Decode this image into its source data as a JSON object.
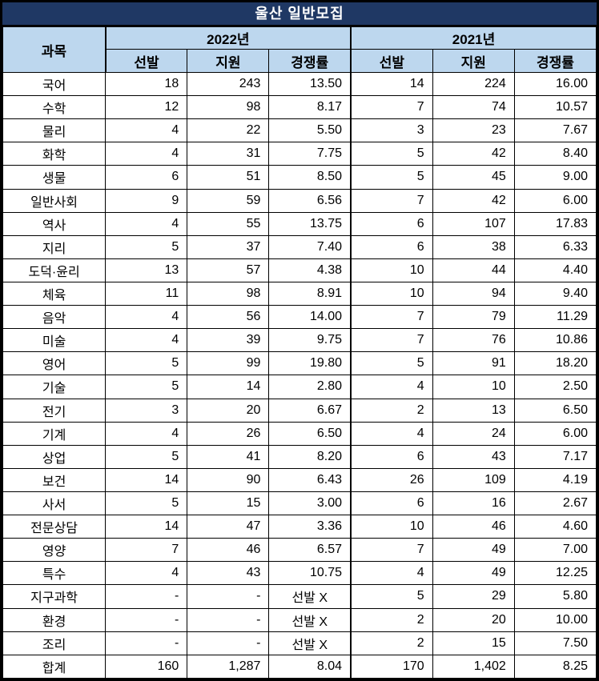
{
  "title": "울산 일반모집",
  "colors": {
    "title_bg": "#1F3864",
    "title_text": "#FFFFFF",
    "header_bg": "#BDD7EE",
    "border": "#000000",
    "cell_bg": "#FFFFFF",
    "cell_text": "#000000"
  },
  "chart_data": {
    "type": "table",
    "title": "울산 일반모집",
    "column_groups": [
      {
        "label": "과목",
        "span": 1
      },
      {
        "label": "2022년",
        "span": 3
      },
      {
        "label": "2021년",
        "span": 3
      }
    ],
    "sub_columns": [
      "선발",
      "지원",
      "경쟁률",
      "선발",
      "지원",
      "경쟁률"
    ],
    "no_selection_label": "선발 X",
    "total_label": "합계",
    "rows": [
      [
        "국어",
        "18",
        "243",
        "13.50",
        "14",
        "224",
        "16.00"
      ],
      [
        "수학",
        "12",
        "98",
        "8.17",
        "7",
        "74",
        "10.57"
      ],
      [
        "물리",
        "4",
        "22",
        "5.50",
        "3",
        "23",
        "7.67"
      ],
      [
        "화학",
        "4",
        "31",
        "7.75",
        "5",
        "42",
        "8.40"
      ],
      [
        "생물",
        "6",
        "51",
        "8.50",
        "5",
        "45",
        "9.00"
      ],
      [
        "일반사회",
        "9",
        "59",
        "6.56",
        "7",
        "42",
        "6.00"
      ],
      [
        "역사",
        "4",
        "55",
        "13.75",
        "6",
        "107",
        "17.83"
      ],
      [
        "지리",
        "5",
        "37",
        "7.40",
        "6",
        "38",
        "6.33"
      ],
      [
        "도덕·윤리",
        "13",
        "57",
        "4.38",
        "10",
        "44",
        "4.40"
      ],
      [
        "체육",
        "11",
        "98",
        "8.91",
        "10",
        "94",
        "9.40"
      ],
      [
        "음악",
        "4",
        "56",
        "14.00",
        "7",
        "79",
        "11.29"
      ],
      [
        "미술",
        "4",
        "39",
        "9.75",
        "7",
        "76",
        "10.86"
      ],
      [
        "영어",
        "5",
        "99",
        "19.80",
        "5",
        "91",
        "18.20"
      ],
      [
        "기술",
        "5",
        "14",
        "2.80",
        "4",
        "10",
        "2.50"
      ],
      [
        "전기",
        "3",
        "20",
        "6.67",
        "2",
        "13",
        "6.50"
      ],
      [
        "기계",
        "4",
        "26",
        "6.50",
        "4",
        "24",
        "6.00"
      ],
      [
        "상업",
        "5",
        "41",
        "8.20",
        "6",
        "43",
        "7.17"
      ],
      [
        "보건",
        "14",
        "90",
        "6.43",
        "26",
        "109",
        "4.19"
      ],
      [
        "사서",
        "5",
        "15",
        "3.00",
        "6",
        "16",
        "2.67"
      ],
      [
        "전문상담",
        "14",
        "47",
        "3.36",
        "10",
        "46",
        "4.60"
      ],
      [
        "영양",
        "7",
        "46",
        "6.57",
        "7",
        "49",
        "7.00"
      ],
      [
        "특수",
        "4",
        "43",
        "10.75",
        "4",
        "49",
        "12.25"
      ],
      [
        "지구과학",
        "-",
        "-",
        "선발 X",
        "5",
        "29",
        "5.80"
      ],
      [
        "환경",
        "-",
        "-",
        "선발 X",
        "2",
        "20",
        "10.00"
      ],
      [
        "조리",
        "-",
        "-",
        "선발 X",
        "2",
        "15",
        "7.50"
      ],
      [
        "합계",
        "160",
        "1,287",
        "8.04",
        "170",
        "1,402",
        "8.25"
      ]
    ]
  }
}
